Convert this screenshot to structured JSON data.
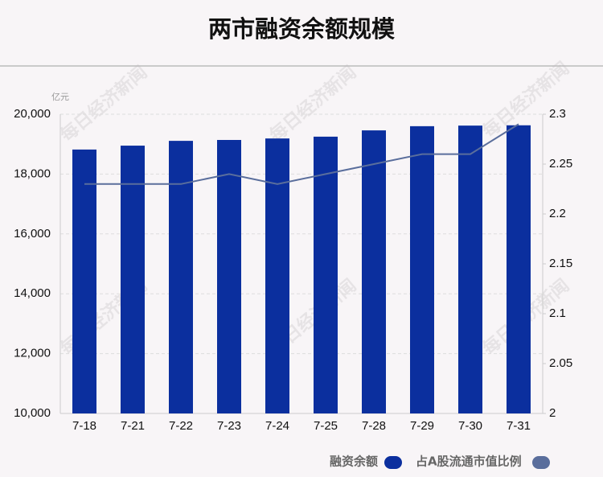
{
  "chart_data": {
    "type": "bar_line",
    "title": "两市融资余额规模",
    "y_unit": "亿元",
    "watermark": "每日经济新闻",
    "categories": [
      "7-18",
      "7-21",
      "7-22",
      "7-23",
      "7-24",
      "7-25",
      "7-28",
      "7-29",
      "7-30",
      "7-31"
    ],
    "series": [
      {
        "name": "融资余额",
        "color": "#0b2f9e",
        "type": "bar",
        "values": [
          18820,
          18950,
          19110,
          19140,
          19190,
          19250,
          19460,
          19600,
          19620,
          19630
        ]
      },
      {
        "name": "占A股流通市值比例",
        "color": "#5a6e9c",
        "type": "line",
        "axis": "y2",
        "values": [
          2.23,
          2.23,
          2.23,
          2.24,
          2.23,
          2.24,
          2.25,
          2.26,
          2.26,
          2.29
        ]
      }
    ],
    "ylim": [
      10000,
      20000
    ],
    "yticks": [
      {
        "value": 10000,
        "label": "10,000"
      },
      {
        "value": 12000,
        "label": "12,000"
      },
      {
        "value": 14000,
        "label": "14,000"
      },
      {
        "value": 16000,
        "label": "16,000"
      },
      {
        "value": 18000,
        "label": "18,000"
      },
      {
        "value": 20000,
        "label": "20,000"
      }
    ],
    "y2lim": [
      2,
      2.3
    ],
    "y2ticks": [
      2,
      2.05,
      2.1,
      2.15,
      2.2,
      2.25,
      2.3
    ],
    "grid": true
  }
}
